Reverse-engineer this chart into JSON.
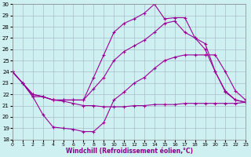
{
  "xlabel": "Windchill (Refroidissement éolien,°C)",
  "xlim": [
    0,
    23
  ],
  "ylim": [
    18,
    30
  ],
  "xticks": [
    0,
    1,
    2,
    3,
    4,
    5,
    6,
    7,
    8,
    9,
    10,
    11,
    12,
    13,
    14,
    15,
    16,
    17,
    18,
    19,
    20,
    21,
    22,
    23
  ],
  "yticks": [
    18,
    19,
    20,
    21,
    22,
    23,
    24,
    25,
    26,
    27,
    28,
    29,
    30
  ],
  "bg_color": "#cff0f0",
  "line_color": "#990099",
  "grid_color": "#aabbcc",
  "series": [
    {
      "x": [
        0,
        1,
        2,
        3,
        4,
        5,
        6,
        7,
        8,
        9,
        10,
        11,
        12,
        13,
        14,
        15,
        16,
        17,
        18,
        19,
        20,
        21,
        22,
        23
      ],
      "y": [
        24.0,
        23.0,
        21.8,
        21.8,
        21.5,
        21.4,
        21.2,
        21.0,
        21.0,
        20.9,
        20.9,
        20.9,
        21.0,
        21.0,
        21.1,
        21.1,
        21.1,
        21.2,
        21.2,
        21.2,
        21.2,
        21.2,
        21.2,
        21.3
      ]
    },
    {
      "x": [
        0,
        1,
        2,
        3,
        4,
        5,
        6,
        7,
        8,
        9,
        10,
        11,
        12,
        13,
        14,
        15,
        16,
        17,
        18,
        19,
        20,
        21,
        22,
        23
      ],
      "y": [
        24.0,
        23.0,
        21.8,
        20.2,
        19.1,
        19.0,
        18.9,
        18.7,
        18.7,
        19.5,
        21.5,
        22.2,
        23.0,
        23.5,
        24.3,
        25.0,
        25.3,
        25.5,
        25.5,
        25.5,
        25.5,
        24.0,
        22.3,
        21.5
      ]
    },
    {
      "x": [
        0,
        1,
        2,
        3,
        4,
        5,
        6,
        7,
        8,
        9,
        10,
        11,
        12,
        13,
        14,
        15,
        16,
        17,
        18,
        19,
        20,
        21,
        22,
        23
      ],
      "y": [
        24.0,
        23.0,
        22.0,
        21.8,
        21.5,
        21.5,
        21.5,
        21.5,
        22.5,
        23.5,
        25.0,
        25.8,
        26.3,
        26.8,
        27.5,
        28.3,
        28.5,
        27.5,
        27.0,
        26.5,
        24.0,
        22.2,
        21.5,
        21.3
      ]
    },
    {
      "x": [
        0,
        1,
        2,
        3,
        4,
        5,
        6,
        7,
        8,
        9,
        10,
        11,
        12,
        13,
        14,
        15,
        16,
        17,
        18,
        19,
        20,
        21,
        22,
        23
      ],
      "y": [
        24.0,
        23.0,
        22.0,
        21.8,
        21.5,
        21.5,
        21.5,
        21.5,
        23.5,
        25.5,
        27.5,
        28.3,
        28.7,
        29.2,
        30.0,
        28.7,
        28.8,
        28.8,
        27.0,
        26.0,
        24.0,
        22.3,
        21.5,
        21.3
      ]
    }
  ]
}
